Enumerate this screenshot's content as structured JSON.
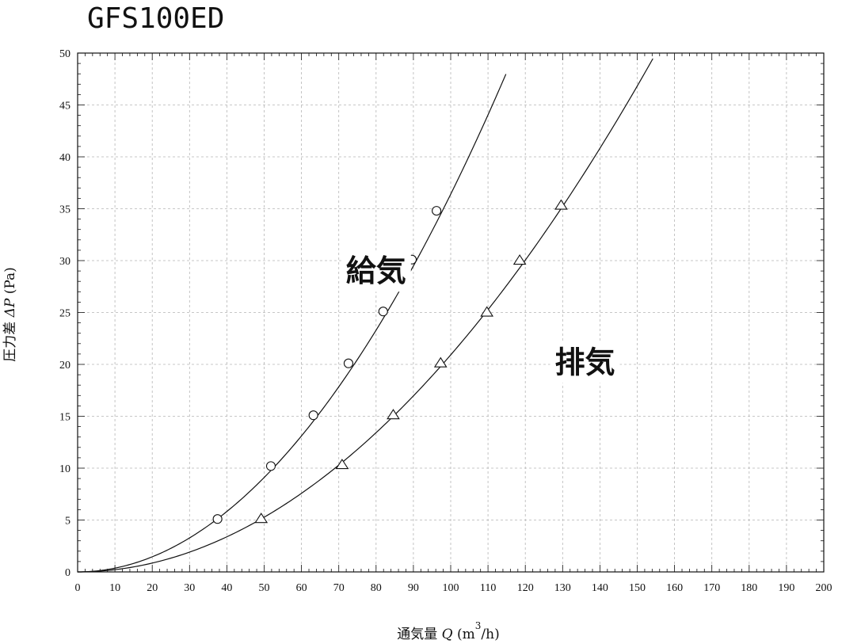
{
  "chart_data": {
    "type": "line",
    "title": "GFS100ED",
    "xlabel": "通気量 Q (m3/h)",
    "xlabel_parts": {
      "prefix": "通気量 ",
      "symbol": "Q",
      "unit_open": " (m",
      "unit_sup": "3",
      "unit_close": "/h)"
    },
    "ylabel": "圧力差 ΔP (Pa)",
    "ylabel_parts": {
      "prefix": "圧力差 ",
      "symbol": "ΔP",
      "unit": " (Pa)"
    },
    "xlim": [
      0,
      200
    ],
    "ylim": [
      0,
      50
    ],
    "x_ticks": [
      0,
      10,
      20,
      30,
      40,
      50,
      60,
      70,
      80,
      90,
      100,
      110,
      120,
      130,
      140,
      150,
      160,
      170,
      180,
      190,
      200
    ],
    "y_ticks": [
      0,
      5,
      10,
      15,
      20,
      25,
      30,
      35,
      40,
      45,
      50
    ],
    "grid": true,
    "legend": "none",
    "series": [
      {
        "name": "給気",
        "marker": "circle",
        "label_position": {
          "x": 80,
          "y": 28
        },
        "points": [
          [
            37.5,
            5.1
          ],
          [
            51.8,
            10.2
          ],
          [
            63.2,
            15.1
          ],
          [
            72.6,
            20.1
          ],
          [
            81.9,
            25.1
          ],
          [
            89.6,
            30.1
          ],
          [
            96.2,
            34.8
          ]
        ],
        "curve": {
          "coef": 0.00364,
          "exp": 2.0,
          "x_end": 114.8
        }
      },
      {
        "name": "排気",
        "marker": "triangle",
        "label_position": {
          "x": 136,
          "y": 19.2
        },
        "points": [
          [
            49.2,
            5.1
          ],
          [
            70.9,
            10.3
          ],
          [
            84.6,
            15.1
          ],
          [
            97.3,
            20.1
          ],
          [
            109.7,
            25.0
          ],
          [
            118.5,
            30.0
          ],
          [
            129.6,
            35.3
          ]
        ],
        "curve": {
          "coef": 0.00221,
          "exp": 1.988,
          "x_end": 154.2
        }
      }
    ]
  }
}
